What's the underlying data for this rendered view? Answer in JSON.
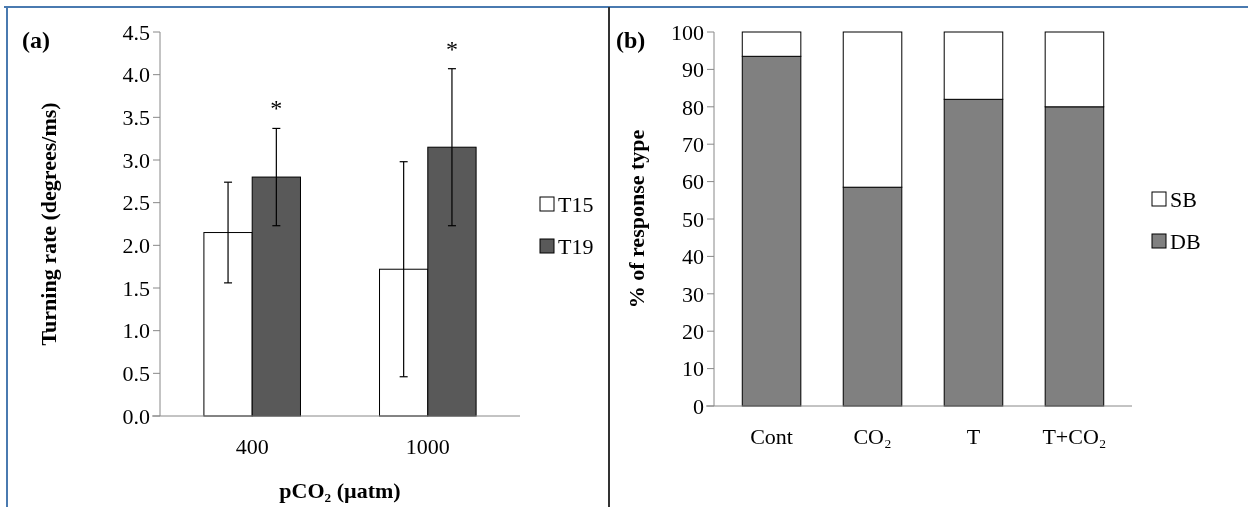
{
  "chart_data": [
    {
      "type": "bar",
      "title": "(a)",
      "xlabel": "pCO₂ (µatm)",
      "ylabel": "Turning rate (degrees/ms)",
      "categories": [
        "400",
        "1000"
      ],
      "series": [
        {
          "name": "T15",
          "color": "#ffffff",
          "values": [
            2.15,
            1.72
          ],
          "errors": [
            0.59,
            1.26
          ]
        },
        {
          "name": "T19",
          "color": "#595959",
          "values": [
            2.8,
            3.15
          ],
          "errors": [
            0.57,
            0.92
          ]
        }
      ],
      "ylim": [
        0,
        4.5
      ],
      "yticks": [
        {
          "value": 0,
          "label": "0.0"
        },
        {
          "value": 0.5,
          "label": "0.5"
        },
        {
          "value": 1,
          "label": "1.0"
        },
        {
          "value": 1.5,
          "label": "1.5"
        },
        {
          "value": 2,
          "label": "2.0"
        },
        {
          "value": 2.5,
          "label": "2.5"
        },
        {
          "value": 3,
          "label": "3.0"
        },
        {
          "value": 3.5,
          "label": "3.5"
        },
        {
          "value": 4,
          "label": "4.0"
        },
        {
          "value": 4.5,
          "label": "4.5"
        }
      ],
      "annotations": [
        "*",
        "*"
      ],
      "grid": false,
      "legend": "right"
    },
    {
      "type": "bar",
      "title": "(b)",
      "ylabel": "% of response type",
      "categories": [
        "Cont",
        "CO₂",
        "T",
        "T+CO₂"
      ],
      "stacked": true,
      "series": [
        {
          "name": "DB",
          "color": "#808080",
          "values": [
            93.5,
            58.5,
            82,
            80
          ]
        },
        {
          "name": "SB",
          "color": "#ffffff",
          "values": [
            6.5,
            41.5,
            18,
            20
          ]
        }
      ],
      "ylim": [
        0,
        100
      ],
      "yticks": [
        0,
        10,
        20,
        30,
        40,
        50,
        60,
        70,
        80,
        90,
        100
      ],
      "grid": false,
      "legend": "right"
    }
  ]
}
